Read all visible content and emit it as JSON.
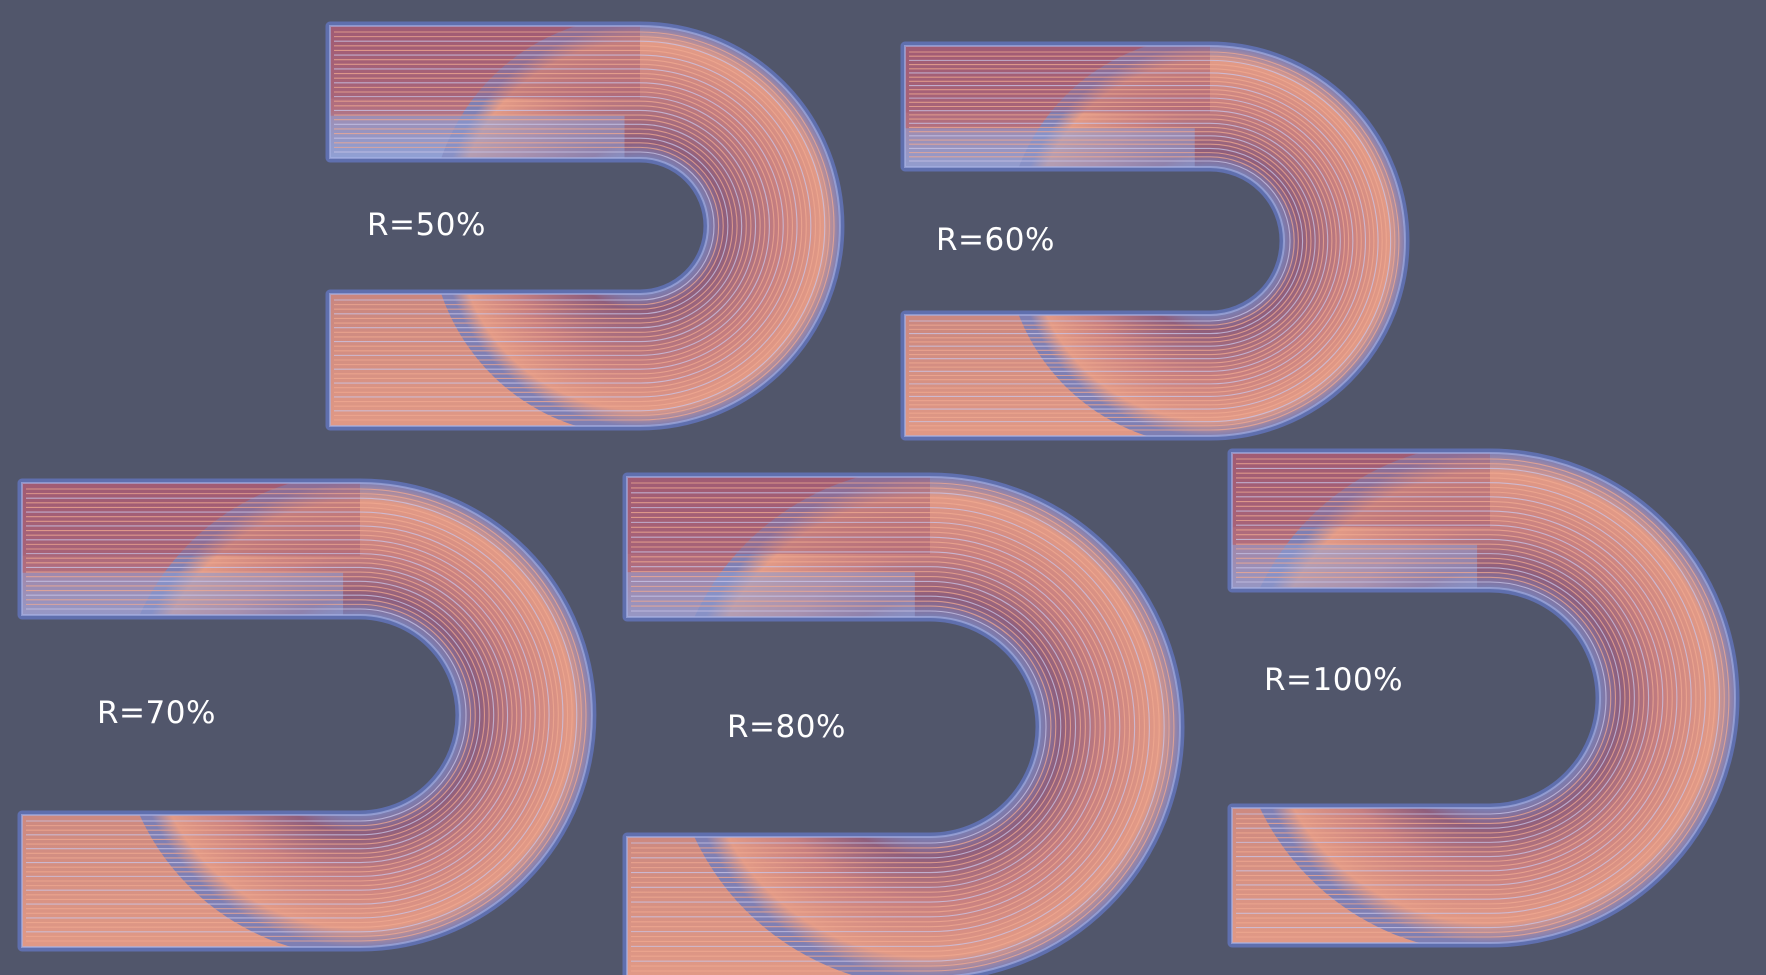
{
  "figure": {
    "background": "#51566b",
    "wall_color": "#5f6fae",
    "colors": {
      "cool": "#8fa1d6",
      "warm_dark": "#a05a73",
      "warm": "#e29a86",
      "streamline": "#f0a992"
    },
    "panels": [
      {
        "id": "r50",
        "label": "R=50%"
      },
      {
        "id": "r60",
        "label": "R=60%"
      },
      {
        "id": "r70",
        "label": "R=70%"
      },
      {
        "id": "r80",
        "label": "R=80%"
      },
      {
        "id": "r100",
        "label": "R=100%"
      }
    ]
  }
}
